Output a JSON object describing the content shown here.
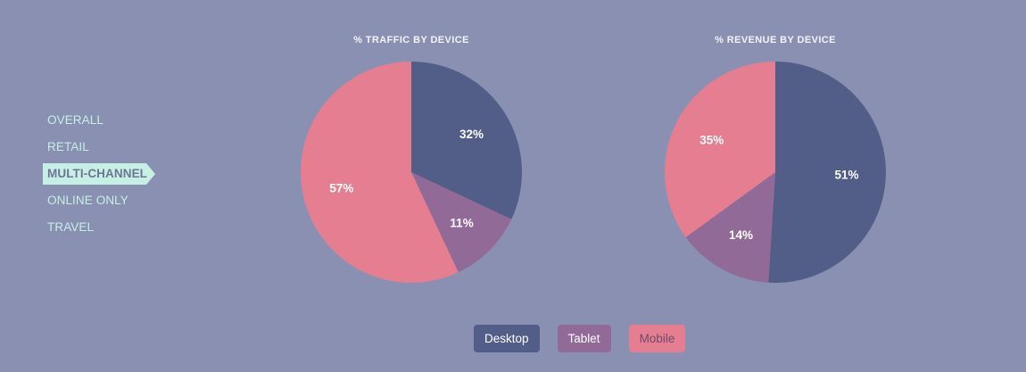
{
  "sidebar": {
    "items": [
      {
        "label": "OVERALL",
        "active": false
      },
      {
        "label": "RETAIL",
        "active": false
      },
      {
        "label": "MULTI-CHANNEL",
        "active": true
      },
      {
        "label": "ONLINE ONLY",
        "active": false
      },
      {
        "label": "TRAVEL",
        "active": false
      }
    ]
  },
  "colors": {
    "background": "#8990b1",
    "desktop": "#525d88",
    "tablet": "#926a98",
    "mobile": "#e57e90",
    "nav_text": "#c6f0e4",
    "nav_active_bg": "#c6f0e4",
    "nav_active_text": "#6f7596"
  },
  "legend": {
    "items": [
      {
        "label": "Desktop",
        "color": "#525d88",
        "text_color": "#ffffff"
      },
      {
        "label": "Tablet",
        "color": "#926a98",
        "text_color": "#ffffff"
      },
      {
        "label": "Mobile",
        "color": "#e57e90",
        "text_color": "#6f4b6c"
      }
    ]
  },
  "chart_data": [
    {
      "type": "pie",
      "title": "% TRAFFIC BY DEVICE",
      "categories": [
        "Desktop",
        "Tablet",
        "Mobile"
      ],
      "values": [
        32,
        11,
        57
      ],
      "labels": [
        "32%",
        "11%",
        "57%"
      ],
      "colors": [
        "#525d88",
        "#926a98",
        "#e57e90"
      ]
    },
    {
      "type": "pie",
      "title": "% REVENUE BY DEVICE",
      "categories": [
        "Desktop",
        "Tablet",
        "Mobile"
      ],
      "values": [
        51,
        14,
        35
      ],
      "labels": [
        "51%",
        "14%",
        "35%"
      ],
      "colors": [
        "#525d88",
        "#926a98",
        "#e57e90"
      ]
    }
  ]
}
